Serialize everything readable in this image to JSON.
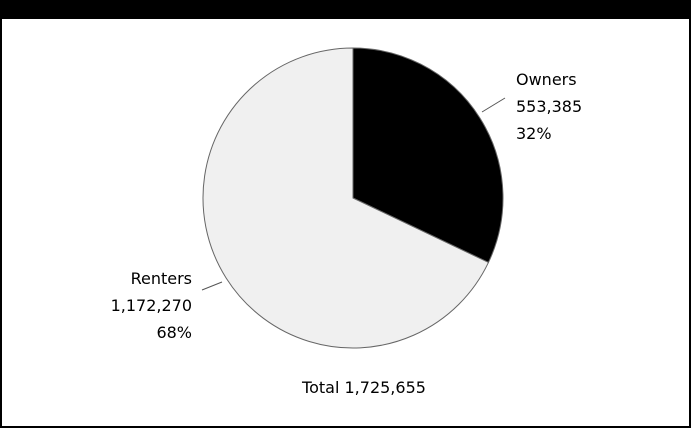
{
  "chart_data": {
    "type": "pie",
    "slices": [
      {
        "label": "Owners",
        "value": 553385,
        "value_text": "553,385",
        "percent": 32,
        "percent_text": "32%",
        "color": "#000000"
      },
      {
        "label": "Renters",
        "value": 1172270,
        "value_text": "1,172,270",
        "percent": 68,
        "percent_text": "68%",
        "color": "#f0f0f0"
      }
    ],
    "total_label": "Total 1,725,655",
    "total": 1725655
  }
}
